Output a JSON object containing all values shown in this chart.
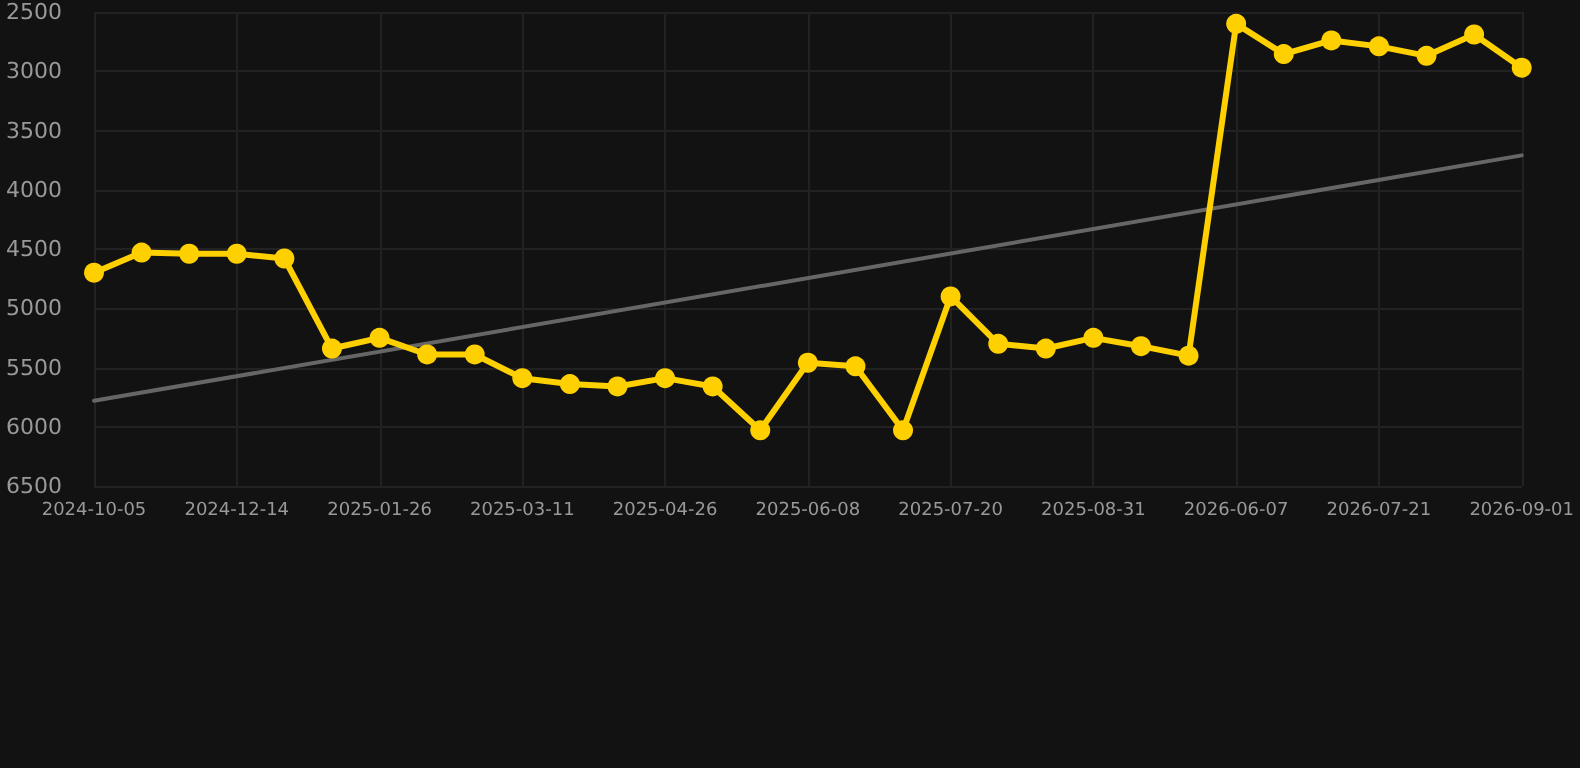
{
  "chart_data": {
    "type": "line",
    "categories": [
      "2024-10-05",
      null,
      null,
      "2024-12-14",
      null,
      null,
      "2025-01-26",
      null,
      null,
      "2025-03-11",
      null,
      null,
      "2025-04-26",
      null,
      null,
      "2025-06-08",
      null,
      null,
      "2025-07-20",
      null,
      null,
      "2025-08-31",
      null,
      null,
      "2026-06-07",
      null,
      null,
      "2026-07-21",
      null,
      null,
      "2026-09-01"
    ],
    "ylim": [
      6500,
      2500
    ],
    "yticks": [
      2500,
      3000,
      3500,
      4000,
      4500,
      5000,
      5500,
      6000,
      6500
    ],
    "grid": true,
    "marker": "circle",
    "line_style": "solid",
    "series": [
      {
        "type": "line",
        "color": "#666666",
        "marker": "none",
        "values": [
          5780,
          null,
          null,
          null,
          null,
          null,
          null,
          null,
          null,
          null,
          null,
          null,
          null,
          null,
          null,
          null,
          null,
          null,
          null,
          null,
          null,
          null,
          null,
          null,
          null,
          null,
          null,
          null,
          null,
          null,
          3710
        ]
      },
      {
        "color": "#ffd000",
        "values": [
          4700,
          4530,
          4540,
          4540,
          4580,
          5340,
          5250,
          5390,
          5390,
          5590,
          5640,
          5660,
          5590,
          5660,
          6030,
          5460,
          5490,
          6030,
          4900,
          5300,
          5340,
          5250,
          5320,
          5400,
          2600,
          2855,
          2740,
          2790,
          2870,
          2690,
          2970
        ]
      }
    ]
  }
}
